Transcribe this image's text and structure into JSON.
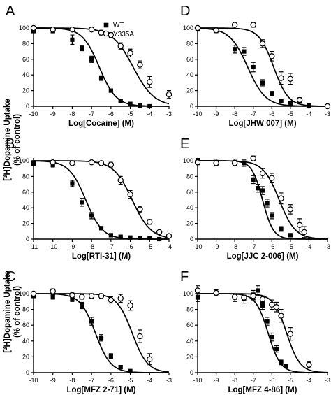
{
  "y_axis_label_line1_prefix": "[",
  "y_axis_label_sup": "3",
  "y_axis_label_line1_suffix": "H]Dopamine Uptake",
  "y_axis_label_line2": "(% of control)",
  "legend": [
    {
      "label": "WT",
      "marker": "filled-square-icon"
    },
    {
      "label": "Y335A",
      "marker": "open-circle-icon"
    }
  ],
  "colors": {
    "ink": "#000000",
    "background": "#ffffff"
  },
  "chart_data": [
    {
      "panel": "A",
      "type": "scatter",
      "xlabel": "Log[Cocaine] (M)",
      "xlim": [
        -10,
        -3
      ],
      "ylim": [
        0,
        100
      ],
      "x_ticks": [
        -10,
        -9,
        -8,
        -7,
        -6,
        -5,
        -4,
        -3
      ],
      "y_ticks": [
        0,
        20,
        40,
        60,
        80,
        100
      ],
      "series": [
        {
          "name": "WT",
          "marker": "square",
          "fit_ic50_log": -6.6,
          "fit_hill": 1.0,
          "x": [
            -10,
            -9,
            -8,
            -7.5,
            -7,
            -6.5,
            -6,
            -5.5,
            -5,
            -4.5,
            -4
          ],
          "y": [
            96,
            96,
            85,
            74,
            60,
            36,
            20,
            7,
            3,
            1,
            0
          ],
          "err": [
            2,
            2,
            6,
            3,
            4,
            3,
            2,
            1,
            1,
            1,
            0
          ]
        },
        {
          "name": "Y335A",
          "marker": "circle",
          "fit_ic50_log": -4.85,
          "fit_hill": 0.8,
          "x": [
            -10,
            -9,
            -8,
            -7,
            -6.5,
            -6,
            -5.5,
            -5,
            -4.5,
            -4,
            -3
          ],
          "y": [
            100,
            98,
            98,
            98,
            94,
            91,
            77,
            68,
            53,
            31,
            15
          ],
          "err": [
            2,
            2,
            2,
            2,
            3,
            3,
            4,
            5,
            5,
            7,
            5
          ]
        }
      ]
    },
    {
      "panel": "B",
      "type": "scatter",
      "xlabel": "Log[RTI-31] (M)",
      "xlim": [
        -11,
        -4
      ],
      "ylim": [
        0,
        100
      ],
      "x_ticks": [
        -11,
        -10,
        -9,
        -8,
        -7,
        -6,
        -5,
        -4
      ],
      "y_ticks": [
        0,
        20,
        40,
        60,
        80,
        100
      ],
      "series": [
        {
          "name": "WT",
          "marker": "square",
          "fit_ic50_log": -8.3,
          "fit_hill": 1.0,
          "x": [
            -11,
            -10,
            -9,
            -8.5,
            -8,
            -7.5,
            -7,
            -6.5,
            -6,
            -5.5,
            -5,
            -4.5
          ],
          "y": [
            97,
            95,
            71,
            47,
            30,
            14,
            5,
            3,
            2,
            1,
            1,
            0
          ],
          "err": [
            3,
            3,
            4,
            5,
            4,
            2,
            2,
            1,
            1,
            1,
            1,
            0
          ]
        },
        {
          "name": "Y335A",
          "marker": "circle",
          "fit_ic50_log": -5.9,
          "fit_hill": 0.9,
          "x": [
            -10,
            -9,
            -8,
            -7.5,
            -7,
            -6.5,
            -6,
            -5.5,
            -5,
            -4.5,
            -4
          ],
          "y": [
            98,
            97,
            98,
            97,
            95,
            75,
            57,
            38,
            22,
            9,
            4
          ],
          "err": [
            2,
            2,
            2,
            2,
            3,
            5,
            5,
            4,
            3,
            2,
            1
          ]
        }
      ]
    },
    {
      "panel": "C",
      "type": "scatter",
      "xlabel": "Log[MFZ 2-71] (M)",
      "xlim": [
        -10,
        -3
      ],
      "ylim": [
        0,
        100
      ],
      "x_ticks": [
        -10,
        -9,
        -8,
        -7,
        -6,
        -5,
        -4,
        -3
      ],
      "y_ticks": [
        0,
        20,
        40,
        60,
        80,
        100
      ],
      "series": [
        {
          "name": "WT",
          "marker": "square",
          "fit_ic50_log": -6.8,
          "fit_hill": 1.1,
          "x": [
            -10,
            -9,
            -8,
            -7.5,
            -7,
            -6.5,
            -6,
            -5.5,
            -5
          ],
          "y": [
            97,
            96,
            93,
            85,
            65,
            44,
            21,
            7,
            2
          ],
          "err": [
            2,
            3,
            3,
            4,
            5,
            4,
            3,
            2,
            1
          ]
        },
        {
          "name": "Y335A",
          "marker": "circle",
          "fit_ic50_log": -4.9,
          "fit_hill": 1.1,
          "x": [
            -10,
            -9,
            -8,
            -7.5,
            -7,
            -6.5,
            -6,
            -5.5,
            -5,
            -4.5,
            -4
          ],
          "y": [
            100,
            103,
            98,
            96,
            97,
            97,
            92,
            94,
            85,
            46,
            17
          ],
          "err": [
            2,
            3,
            3,
            3,
            3,
            3,
            4,
            5,
            6,
            8,
            7
          ]
        }
      ]
    },
    {
      "panel": "D",
      "type": "scatter",
      "xlabel": "Log[JHW 007] (M)",
      "xlim": [
        -10,
        -3
      ],
      "ylim": [
        0,
        100
      ],
      "x_ticks": [
        -10,
        -9,
        -8,
        -7,
        -6,
        -5,
        -4,
        -3
      ],
      "y_ticks": [
        0,
        20,
        40,
        60,
        80,
        100
      ],
      "series": [
        {
          "name": "WT",
          "marker": "square",
          "fit_ic50_log": -7.3,
          "fit_hill": 0.9,
          "x": [
            -10,
            -9,
            -8,
            -7.5,
            -7,
            -6.5,
            -6,
            -5.5,
            -5,
            -4
          ],
          "y": [
            99,
            97,
            73,
            70,
            50,
            30,
            16,
            7,
            4,
            1
          ],
          "err": [
            3,
            3,
            5,
            5,
            6,
            4,
            3,
            2,
            1,
            1
          ]
        },
        {
          "name": "Y335A",
          "marker": "circle",
          "fit_ic50_log": -5.9,
          "fit_hill": 1.1,
          "x": [
            -10,
            -9,
            -8,
            -7,
            -6.5,
            -6,
            -5.5,
            -5,
            -4.5,
            -3
          ],
          "y": [
            100,
            97,
            104,
            104,
            80,
            64,
            36,
            35,
            8,
            0
          ],
          "err": [
            2,
            2,
            2,
            3,
            5,
            6,
            8,
            7,
            3,
            1
          ]
        }
      ]
    },
    {
      "panel": "E",
      "type": "scatter",
      "xlabel": "Log[JJC 2-006] (M)",
      "xlim": [
        -10,
        -3
      ],
      "ylim": [
        0,
        100
      ],
      "x_ticks": [
        -10,
        -9,
        -8,
        -7,
        -6,
        -5,
        -4,
        -3
      ],
      "y_ticks": [
        0,
        20,
        40,
        60,
        80,
        100
      ],
      "series": [
        {
          "name": "WT",
          "marker": "square",
          "fit_ic50_log": -6.5,
          "fit_hill": 1.5,
          "x": [
            -10,
            -9,
            -8,
            -7.5,
            -7,
            -6.75,
            -6.5,
            -6.25,
            -6,
            -5.5,
            -5
          ],
          "y": [
            100,
            98,
            98,
            97,
            76,
            65,
            62,
            46,
            30,
            13,
            5
          ],
          "err": [
            3,
            4,
            4,
            4,
            5,
            5,
            5,
            5,
            4,
            3,
            2
          ]
        },
        {
          "name": "Y335A",
          "marker": "circle",
          "fit_ic50_log": -5.6,
          "fit_hill": 1.0,
          "x": [
            -10,
            -9,
            -8,
            -7,
            -6.5,
            -6,
            -5.5,
            -5,
            -4.5,
            -4.25
          ],
          "y": [
            98,
            97,
            97,
            103,
            84,
            78,
            52,
            38,
            18,
            9
          ],
          "err": [
            3,
            3,
            3,
            3,
            6,
            6,
            7,
            6,
            8,
            7
          ]
        }
      ]
    },
    {
      "panel": "F",
      "type": "scatter",
      "xlabel": "Log[MFZ 4-86] (M)",
      "xlim": [
        -10,
        -3
      ],
      "ylim": [
        0,
        100
      ],
      "x_ticks": [
        -10,
        -9,
        -8,
        -7,
        -6,
        -5,
        -4,
        -3
      ],
      "y_ticks": [
        0,
        20,
        40,
        60,
        80,
        100
      ],
      "series": [
        {
          "name": "WT",
          "marker": "square",
          "fit_ic50_log": -6.2,
          "fit_hill": 1.3,
          "x": [
            -10,
            -9,
            -8,
            -7.5,
            -7,
            -6.75,
            -6.5,
            -6.25,
            -6,
            -5.75,
            -5.5,
            -5.25
          ],
          "y": [
            95,
            101,
            95,
            93,
            98,
            104,
            85,
            65,
            45,
            30,
            13,
            8
          ],
          "err": [
            5,
            4,
            5,
            5,
            6,
            6,
            5,
            5,
            5,
            4,
            3,
            2
          ]
        },
        {
          "name": "Y335A",
          "marker": "circle",
          "fit_ic50_log": -5.2,
          "fit_hill": 1.2,
          "x": [
            -10,
            -9,
            -8,
            -7.5,
            -7,
            -6.5,
            -6,
            -5.75,
            -5.5,
            -5,
            -4
          ],
          "y": [
            104,
            101,
            96,
            95,
            97,
            93,
            86,
            83,
            72,
            49,
            10
          ],
          "err": [
            6,
            4,
            3,
            3,
            4,
            4,
            6,
            6,
            8,
            8,
            4
          ]
        }
      ]
    }
  ]
}
